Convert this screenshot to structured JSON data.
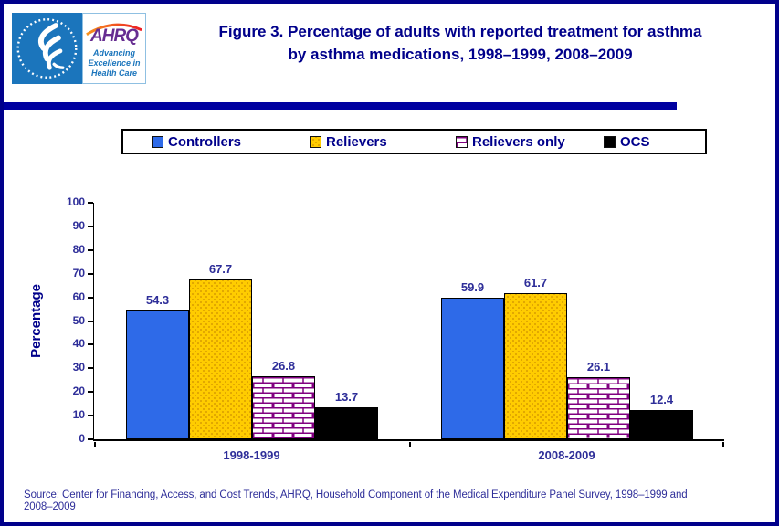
{
  "header": {
    "title_line1": "Figure 3. Percentage of adults with reported treatment for asthma",
    "title_line2": "by asthma medications, 1998–1999, 2008–2009"
  },
  "logo": {
    "ahrq_text": "AHRQ",
    "tagline_line1": "Advancing",
    "tagline_line2": "Excellence in",
    "tagline_line3": "Health Care"
  },
  "chart_data": {
    "type": "bar",
    "title": "Figure 3. Percentage of adults with reported treatment for asthma by asthma medications, 1998–1999, 2008–2009",
    "categories": [
      "1998-1999",
      "2008-2009"
    ],
    "series": [
      {
        "name": "Controllers",
        "values": [
          54.3,
          59.9
        ],
        "color": "#2E6AE8",
        "pattern": "solid"
      },
      {
        "name": "Relievers",
        "values": [
          67.7,
          61.7
        ],
        "color": "#FFCC00",
        "pattern": "dots"
      },
      {
        "name": "Relievers only",
        "values": [
          26.8,
          26.1
        ],
        "color": "#FFFFFF",
        "pattern": "brick",
        "pattern_color": "#800080"
      },
      {
        "name": "OCS",
        "values": [
          13.7,
          12.4
        ],
        "color": "#000000",
        "pattern": "solid"
      }
    ],
    "ylabel": "Percentage",
    "xlabel": "",
    "ylim": [
      0,
      100
    ],
    "yticks": [
      0,
      10,
      20,
      30,
      40,
      50,
      60,
      70,
      80,
      90,
      100
    ],
    "grid": false,
    "legend_position": "top",
    "data_labels_shown": true
  },
  "source": {
    "line1": "Source: Center for Financing, Access, and Cost Trends, AHRQ,  Household Component of the Medical Expenditure Panel Survey,  1998–1999 and",
    "line2": "2008–2009"
  },
  "colors": {
    "title_navy": "#00008B",
    "label_navy": "#2E2E99",
    "band_blue": "#0000A0",
    "border_navy": "#00008B",
    "hhs_blue": "#1B75BC",
    "ahrq_purple": "#662D91",
    "arc_orange": "#F7941D",
    "arc_red": "#ED1C24",
    "bar_blue": "#2E6AE8",
    "bar_yellow": "#FFCC00",
    "brick_purple": "#800080",
    "bar_black": "#000000"
  }
}
